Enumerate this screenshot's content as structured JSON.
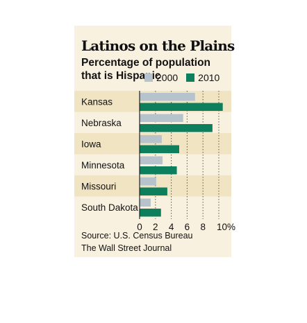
{
  "title": "Latinos on the Plains",
  "subtitle": "Percentage of population that is Hispanic",
  "legend": [
    {
      "label": "2000",
      "color": "#b6c3cc"
    },
    {
      "label": "2010",
      "color": "#0e7f5c"
    }
  ],
  "source": "Source: U.S. Census Bureau",
  "publisher": "The Wall Street Journal",
  "colors": {
    "band": "#f1e4c2",
    "background": "#f9f1e0",
    "series_2000": "#b6c3cc",
    "series_2010": "#0e7f5c"
  },
  "chart_data": {
    "type": "bar",
    "orientation": "horizontal",
    "title": "Latinos on the Plains",
    "subtitle": "Percentage of population that is Hispanic",
    "categories": [
      "Kansas",
      "Nebraska",
      "Iowa",
      "Minnesota",
      "Missouri",
      "South Dakota"
    ],
    "series": [
      {
        "name": "2000",
        "values": [
          7.0,
          5.5,
          2.8,
          2.9,
          2.1,
          1.4
        ]
      },
      {
        "name": "2010",
        "values": [
          10.5,
          9.2,
          5.0,
          4.7,
          3.5,
          2.7
        ]
      }
    ],
    "xticks": [
      "0",
      "2",
      "4",
      "6",
      "8",
      "10%"
    ],
    "xlim": [
      0,
      10
    ],
    "grid": "vertical dotted",
    "legend_position": "top"
  }
}
